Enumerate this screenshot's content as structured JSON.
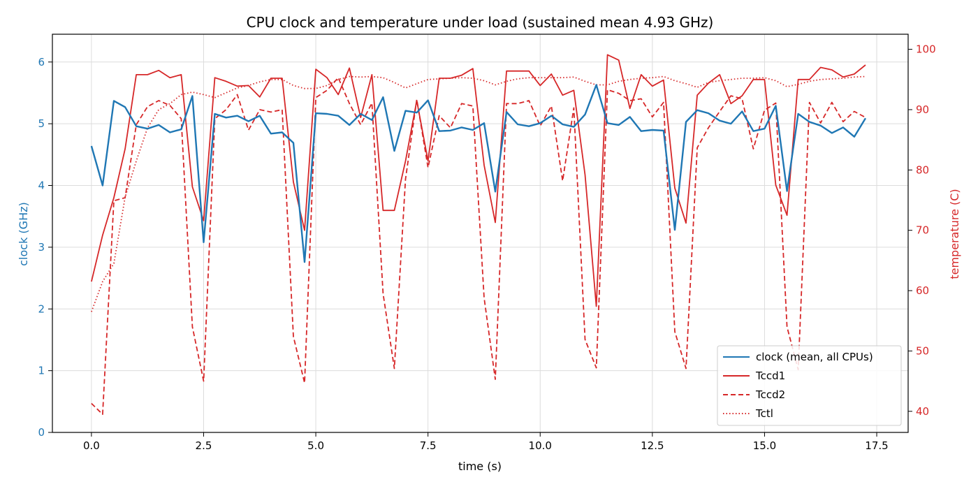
{
  "chart_data": {
    "type": "line",
    "title": "CPU clock and temperature under load (sustained mean 4.93 GHz)",
    "xlabel": "time (s)",
    "ylabel_left": "clock (GHz)",
    "ylabel_right": "temperature (C)",
    "xlim": [
      -0.87,
      18.2
    ],
    "ylim_left": [
      0,
      6.45
    ],
    "ylim_right": [
      36.5,
      102.5
    ],
    "x_ticks": [
      0.0,
      2.5,
      5.0,
      7.5,
      10.0,
      12.5,
      15.0,
      17.5
    ],
    "x_tick_labels": [
      "0.0",
      "2.5",
      "5.0",
      "7.5",
      "10.0",
      "12.5",
      "15.0",
      "17.5"
    ],
    "y_left_ticks": [
      0,
      1,
      2,
      3,
      4,
      5,
      6
    ],
    "y_left_tick_labels": [
      "0",
      "1",
      "2",
      "3",
      "4",
      "5",
      "6"
    ],
    "y_right_ticks": [
      40,
      50,
      60,
      70,
      80,
      90,
      100
    ],
    "y_right_tick_labels": [
      "40",
      "50",
      "60",
      "70",
      "80",
      "90",
      "100"
    ],
    "grid": true,
    "legend_position": "lower-right",
    "x": [
      0.0,
      0.25,
      0.5,
      0.75,
      1.0,
      1.25,
      1.5,
      1.75,
      2.0,
      2.25,
      2.5,
      2.75,
      3.0,
      3.25,
      3.5,
      3.75,
      4.0,
      4.25,
      4.5,
      4.75,
      5.0,
      5.25,
      5.5,
      5.75,
      6.0,
      6.25,
      6.5,
      6.75,
      7.0,
      7.25,
      7.5,
      7.75,
      8.0,
      8.25,
      8.5,
      8.75,
      9.0,
      9.25,
      9.5,
      9.75,
      10.0,
      10.25,
      10.5,
      10.75,
      11.0,
      11.25,
      11.5,
      11.75,
      12.0,
      12.25,
      12.5,
      12.75,
      13.0,
      13.25,
      13.5,
      13.75,
      14.0,
      14.25,
      14.5,
      14.75,
      15.0,
      15.25,
      15.5,
      15.75,
      16.0,
      16.25,
      16.5,
      16.75,
      17.0,
      17.25
    ],
    "series": [
      {
        "name": "clock (mean, all CPUs)",
        "axis": "left",
        "color": "#1f77b4",
        "style": "solid",
        "values": [
          4.64,
          4.0,
          5.37,
          5.27,
          4.96,
          4.92,
          4.98,
          4.86,
          4.91,
          5.45,
          3.08,
          5.16,
          5.1,
          5.13,
          5.04,
          5.13,
          4.84,
          4.86,
          4.69,
          2.76,
          5.17,
          5.16,
          5.13,
          4.98,
          5.16,
          5.06,
          5.43,
          4.56,
          5.21,
          5.18,
          5.38,
          4.88,
          4.89,
          4.94,
          4.9,
          5.01,
          3.9,
          5.19,
          4.99,
          4.96,
          5.01,
          5.13,
          4.99,
          4.95,
          5.15,
          5.63,
          5.01,
          4.98,
          5.11,
          4.88,
          4.9,
          4.89,
          3.28,
          5.03,
          5.22,
          5.17,
          5.05,
          5.0,
          5.2,
          4.88,
          4.92,
          5.29,
          3.91,
          5.16,
          5.03,
          4.97,
          4.85,
          4.94,
          4.79,
          5.09
        ]
      },
      {
        "name": "Tccd1",
        "axis": "right",
        "color": "#d62728",
        "style": "solid",
        "values": [
          61.5,
          69.2,
          75.4,
          83.5,
          95.8,
          95.8,
          96.5,
          95.3,
          95.8,
          77.2,
          71.6,
          95.3,
          94.7,
          93.9,
          94.0,
          92.1,
          95.2,
          95.2,
          78.0,
          70.0,
          96.7,
          95.3,
          92.5,
          96.9,
          88.7,
          95.8,
          73.3,
          73.3,
          81.5,
          91.5,
          81.5,
          95.2,
          95.2,
          95.7,
          96.8,
          80.8,
          71.3,
          96.4,
          96.4,
          96.4,
          94.0,
          95.9,
          92.4,
          93.2,
          79.2,
          57.4,
          99.1,
          98.2,
          90.2,
          95.8,
          93.9,
          94.9,
          77.0,
          71.2,
          92.4,
          94.4,
          95.8,
          91.0,
          92.3,
          95.0,
          95.0,
          77.5,
          72.5,
          95.0,
          95.0,
          97.0,
          96.6,
          95.4,
          95.9,
          97.4
        ]
      },
      {
        "name": "Tccd2",
        "axis": "right",
        "color": "#d62728",
        "style": "dashed",
        "values": [
          41.3,
          39.5,
          74.9,
          75.4,
          87.5,
          90.5,
          91.5,
          90.7,
          88.5,
          54.0,
          45.0,
          88.5,
          90.0,
          92.5,
          86.6,
          90.0,
          89.6,
          90.0,
          52.4,
          44.7,
          92.0,
          93.2,
          95.3,
          91.0,
          87.5,
          91.1,
          59.5,
          47.1,
          78.5,
          91.7,
          80.4,
          89.0,
          87.0,
          91.0,
          90.6,
          58.8,
          45.3,
          91.0,
          91.0,
          91.5,
          87.3,
          90.6,
          78.2,
          90.3,
          51.9,
          47.2,
          93.3,
          92.7,
          91.5,
          91.8,
          88.8,
          91.2,
          53.2,
          47.1,
          83.7,
          87.0,
          89.7,
          92.3,
          91.8,
          83.5,
          89.9,
          91.1,
          54.0,
          46.9,
          91.2,
          87.8,
          91.2,
          88.0,
          89.7,
          88.7
        ]
      },
      {
        "name": "Tctl",
        "axis": "right",
        "color": "#d62728",
        "style": "dotted",
        "values": [
          56.5,
          61.5,
          64.5,
          75.5,
          81.5,
          87.0,
          90.0,
          91.0,
          92.5,
          92.9,
          92.5,
          92.0,
          92.8,
          93.6,
          94.0,
          94.6,
          95.0,
          95.0,
          94.0,
          93.5,
          93.5,
          94.0,
          95.0,
          95.5,
          95.4,
          95.5,
          95.3,
          94.5,
          93.6,
          94.3,
          95.0,
          95.1,
          95.2,
          95.3,
          95.2,
          94.8,
          94.1,
          94.7,
          95.1,
          95.3,
          95.3,
          95.3,
          95.3,
          95.4,
          94.7,
          94.1,
          94.1,
          94.7,
          95.0,
          95.2,
          95.3,
          95.5,
          94.8,
          94.3,
          93.7,
          94.5,
          94.8,
          95.0,
          95.2,
          95.2,
          95.3,
          94.8,
          93.8,
          94.2,
          94.7,
          95.0,
          95.1,
          95.2,
          95.4,
          95.5
        ]
      }
    ]
  }
}
